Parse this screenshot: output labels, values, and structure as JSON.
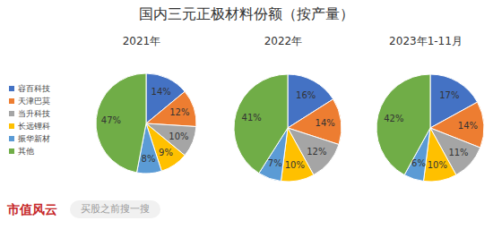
{
  "chart_data": {
    "type": "pie",
    "title": "国内三元正极材料份额（按产量）",
    "categories": [
      "容百科技",
      "天津巴莫",
      "当升科技",
      "长远锂科",
      "振华新材",
      "其他"
    ],
    "colors": [
      "#4472c4",
      "#ed7d31",
      "#a5a5a5",
      "#ffc000",
      "#5b9bd5",
      "#70ad47"
    ],
    "legend": "left",
    "data_labels": true,
    "series": [
      {
        "name": "2021年",
        "values": [
          14,
          12,
          10,
          9,
          8,
          47
        ],
        "value_labels": [
          "14%",
          "12%",
          "10%",
          "9%",
          "8%",
          "47%"
        ]
      },
      {
        "name": "2022年",
        "values": [
          16,
          14,
          12,
          10,
          7,
          41
        ],
        "value_labels": [
          "16%",
          "14%",
          "12%",
          "10%",
          "7%",
          "41%"
        ]
      },
      {
        "name": "2023年1-11月",
        "values": [
          17,
          14,
          11,
          10,
          6,
          42
        ],
        "value_labels": [
          "17%",
          "14%",
          "11%",
          "10%",
          "6%",
          "42%"
        ]
      }
    ],
    "annotations": [
      "市值风云",
      "买股之前搜一搜"
    ]
  }
}
